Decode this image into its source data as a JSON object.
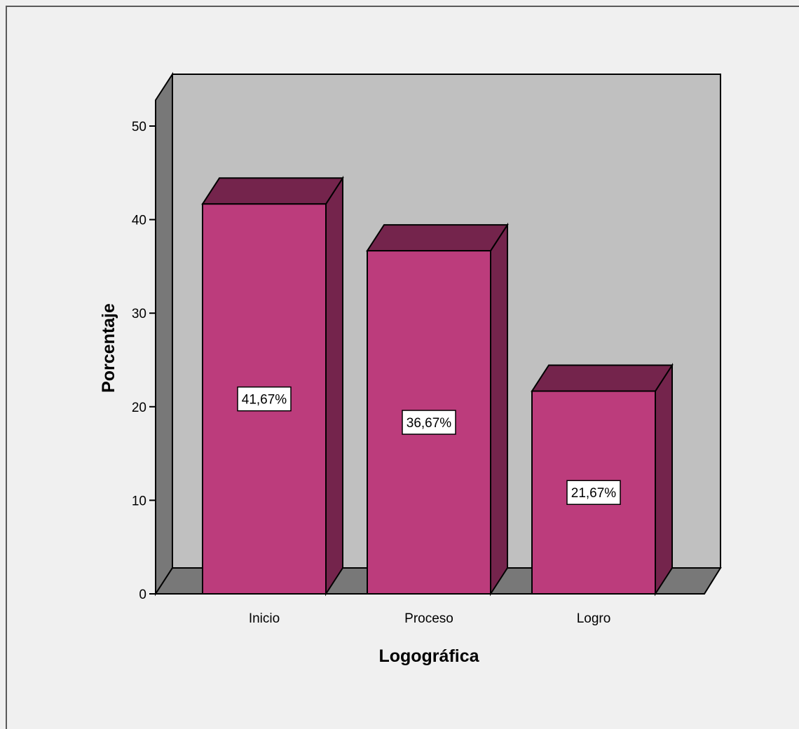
{
  "chart_data": {
    "type": "bar",
    "categories": [
      "Inicio",
      "Proceso",
      "Logro"
    ],
    "values": [
      41.67,
      36.67,
      21.67
    ],
    "data_labels": [
      "41,67%",
      "36,67%",
      "21,67%"
    ],
    "xlabel": "Logográfica",
    "ylabel": "Porcentaje",
    "ylim": [
      0,
      50
    ],
    "yticks": [
      0,
      10,
      20,
      30,
      40,
      50
    ],
    "style": "3d",
    "grid": false,
    "legend": "none"
  },
  "colors": {
    "bar_front": "#bc3c7c",
    "bar_top": "#74244c",
    "bar_side": "#74244c",
    "back_wall": "#c0c0c0",
    "side_wall": "#787878",
    "floor": "#787878",
    "background": "#f0f0f0"
  }
}
